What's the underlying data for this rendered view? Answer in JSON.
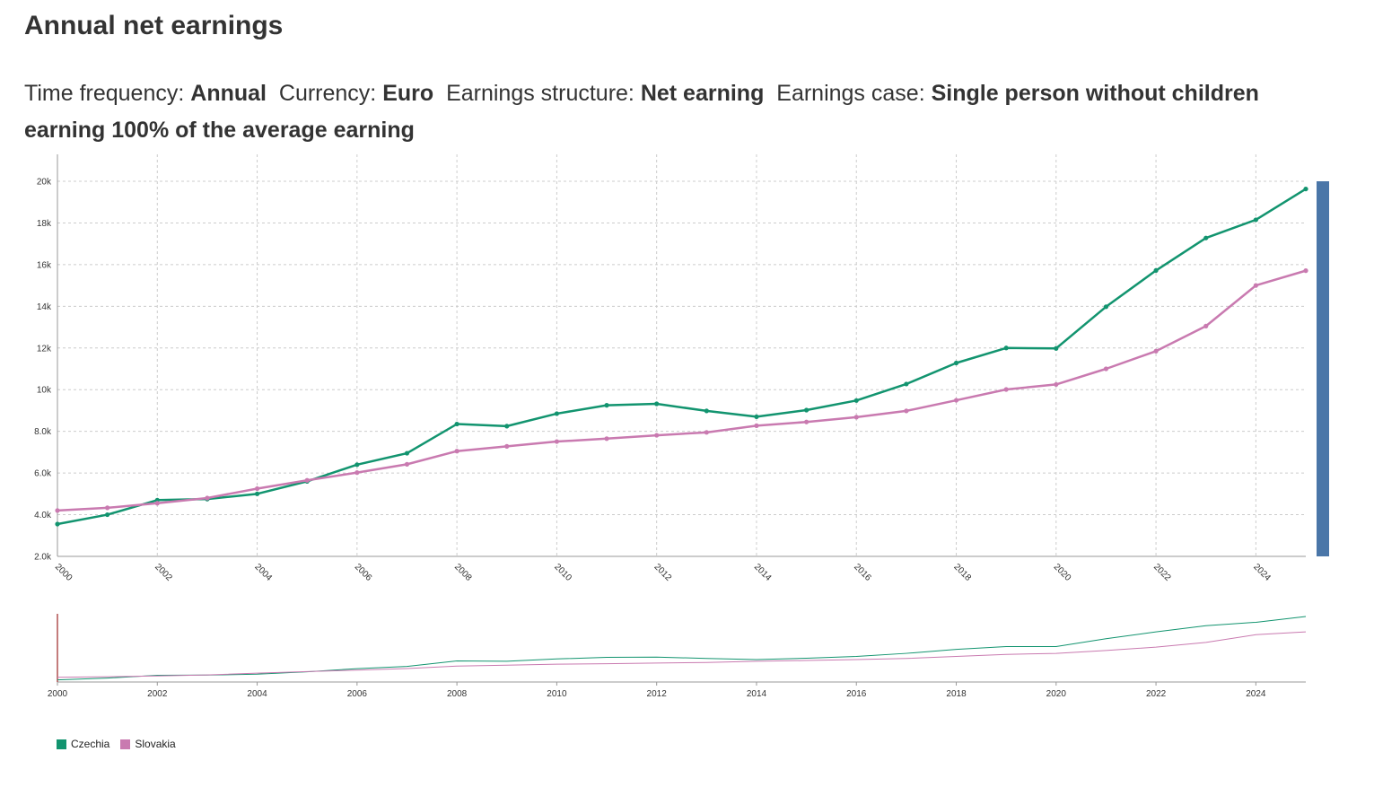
{
  "title": "Annual net earnings",
  "filters": [
    {
      "label": "Time frequency: ",
      "value": "Annual"
    },
    {
      "label": "Currency: ",
      "value": "Euro"
    },
    {
      "label": "Earnings structure: ",
      "value": "Net earning"
    },
    {
      "label": "Earnings case: ",
      "value": "Single person without children earning 100% of the average earning"
    }
  ],
  "chart_data": {
    "type": "line",
    "x": [
      2000,
      2001,
      2002,
      2003,
      2004,
      2005,
      2006,
      2007,
      2008,
      2009,
      2010,
      2011,
      2012,
      2013,
      2014,
      2015,
      2016,
      2017,
      2018,
      2019,
      2020,
      2021,
      2022,
      2023,
      2024,
      2025
    ],
    "series": [
      {
        "name": "Czechia",
        "color": "#12946f",
        "values": [
          3550,
          4000,
          4700,
          4750,
          5000,
          5600,
          6400,
          6950,
          8350,
          8250,
          8850,
          9250,
          9320,
          8980,
          8700,
          9020,
          9480,
          10270,
          11280,
          12000,
          11980,
          13980,
          15720,
          17280,
          18150,
          19630
        ]
      },
      {
        "name": "Slovakia",
        "color": "#c97ab0",
        "values": [
          4200,
          4330,
          4550,
          4800,
          5250,
          5650,
          6020,
          6420,
          7050,
          7280,
          7510,
          7650,
          7810,
          7950,
          8270,
          8450,
          8680,
          8980,
          9490,
          10010,
          10250,
          11000,
          11850,
          13050,
          15000,
          15710
        ]
      }
    ],
    "x_ticks": [
      "2000",
      "2002",
      "2004",
      "2006",
      "2008",
      "2010",
      "2012",
      "2014",
      "2016",
      "2018",
      "2020",
      "2022",
      "2024"
    ],
    "y_ticks": [
      "2.0k",
      "4.0k",
      "6.0k",
      "8.0k",
      "10k",
      "12k",
      "14k",
      "16k",
      "18k",
      "20k"
    ],
    "xlim": [
      2000,
      2025
    ],
    "ylim": [
      2000,
      20000
    ],
    "grid": true,
    "legend_position": "bottom-left",
    "navigator": true
  }
}
